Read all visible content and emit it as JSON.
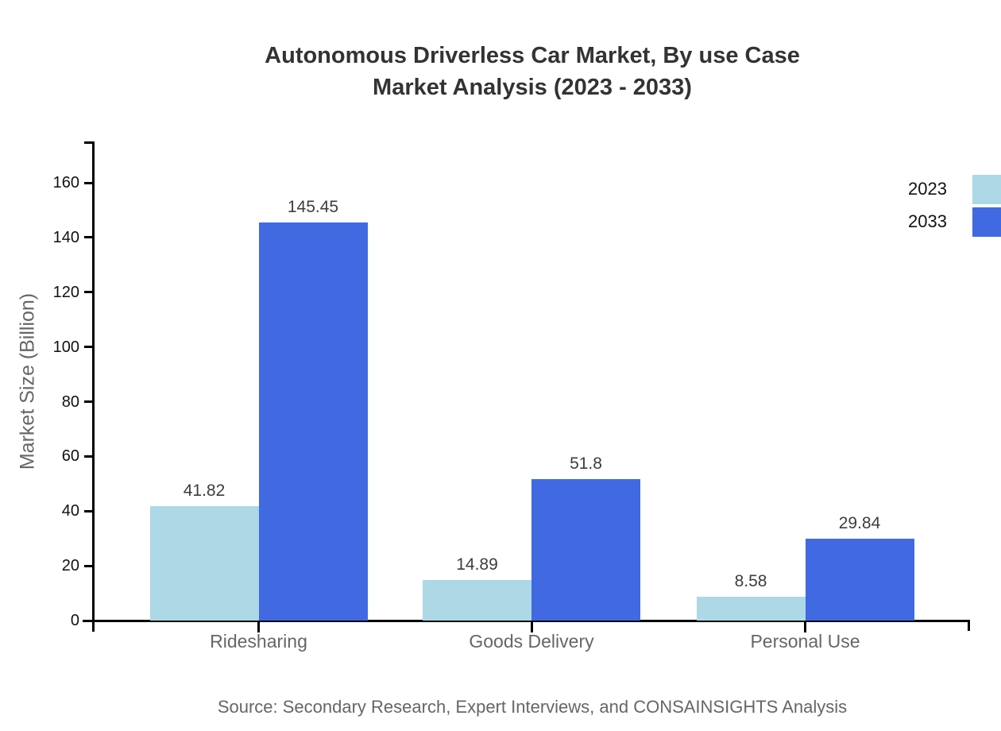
{
  "title": {
    "line1": "Autonomous Driverless Car Market, By use Case",
    "line2": "Market Analysis (2023 - 2033)"
  },
  "source": "Source: Secondary Research, Expert Interviews, and CONSAINSIGHTS Analysis",
  "chart_data": {
    "type": "bar",
    "title": "Autonomous Driverless Car Market, By use Case Market Analysis (2023 - 2033)",
    "categories": [
      "Ridesharing",
      "Goods Delivery",
      "Personal Use"
    ],
    "series": [
      {
        "name": "2023",
        "color": "#ADD8E6",
        "values": [
          41.82,
          14.89,
          8.58
        ]
      },
      {
        "name": "2033",
        "color": "#4169E1",
        "values": [
          145.45,
          51.8,
          29.84
        ]
      }
    ],
    "xlabel": "",
    "ylabel": "Market Size (Billion)",
    "ylim": [
      0,
      175
    ],
    "yticks": [
      0,
      20,
      40,
      60,
      80,
      100,
      120,
      140,
      160
    ],
    "grid": false,
    "value_labels": true,
    "legend_position": "top-right",
    "colors": {
      "axis": "#000000",
      "tick_label": "#111111",
      "category_label": "#666666",
      "value_label": "#3d3d3d",
      "title": "#333333",
      "muted_text": "#666666",
      "background": "#ffffff"
    }
  }
}
